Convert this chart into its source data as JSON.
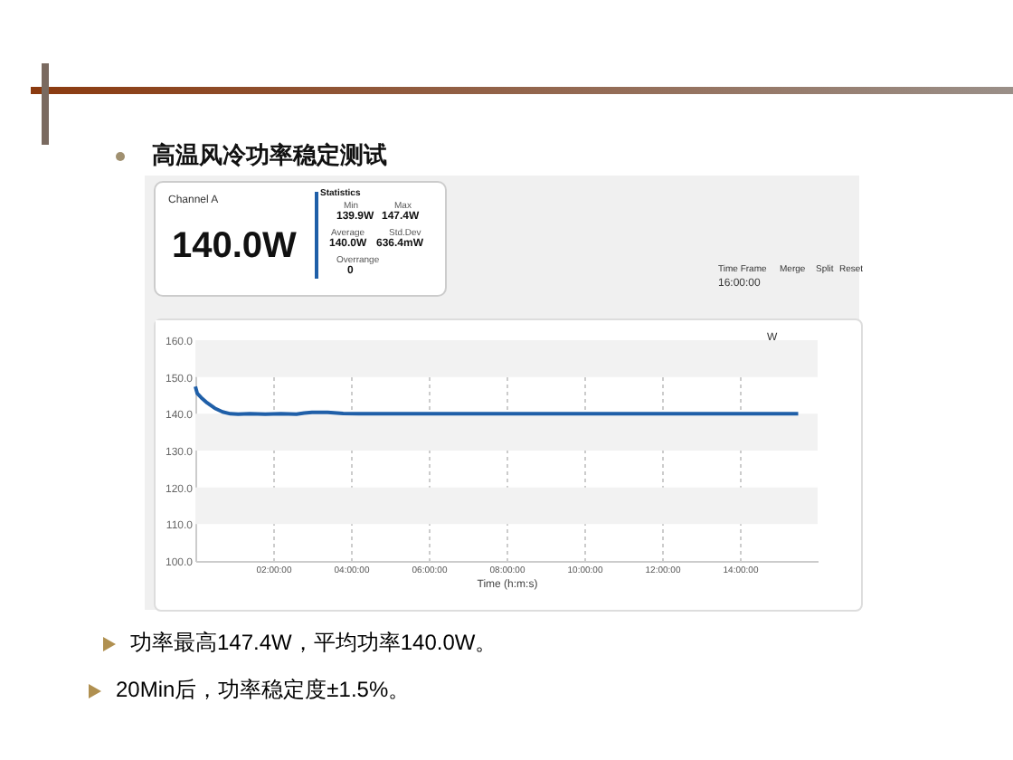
{
  "chart_data": {
    "type": "line",
    "subtitle": "高温风冷功率稳定测试",
    "xlabel": "Time (h:m:s)",
    "annotations": [
      "Channel A",
      "140.0W",
      "Statistics",
      "Min",
      "139.9W",
      "Max",
      "147.4W",
      "Average",
      "140.0W",
      "Std.Dev",
      "636.4mW",
      "Overrange",
      "0",
      "Time Frame",
      "16:00:00",
      "Merge",
      "Split",
      "Reset",
      "W",
      "功率最高147.4W，平均功率140.0W。",
      "20Min后，功率稳定度±1.5%。"
    ],
    "series": [
      {
        "color": "#1f5fa8",
        "x": [
          0,
          0.05,
          0.15,
          0.3,
          0.5,
          0.7,
          0.9,
          1.1,
          1.4,
          1.8,
          2.2,
          2.6,
          2.8,
          3.0,
          3.4,
          3.8,
          4.2,
          6,
          8,
          10,
          12,
          14,
          15.5
        ],
        "values": [
          147.4,
          145.5,
          144.4,
          143.0,
          141.5,
          140.5,
          140.0,
          139.9,
          140.0,
          139.9,
          140.0,
          139.9,
          140.2,
          140.4,
          140.4,
          140.1,
          140.0,
          140.0,
          140.0,
          140.0,
          140.0,
          140.0,
          140.0
        ]
      }
    ],
    "xlim": [
      0,
      16
    ],
    "ylim": [
      100,
      160
    ],
    "xticks": [
      {
        "value": 2,
        "label": "02:00:00"
      },
      {
        "value": 4,
        "label": "04:00:00"
      },
      {
        "value": 6,
        "label": "06:00:00"
      },
      {
        "value": 8,
        "label": "08:00:00"
      },
      {
        "value": 10,
        "label": "10:00:00"
      },
      {
        "value": 12,
        "label": "12:00:00"
      },
      {
        "value": 14,
        "label": "14:00:00"
      }
    ],
    "yticks": [
      {
        "value": 100,
        "label": "100.0"
      },
      {
        "value": 110,
        "label": "110.0"
      },
      {
        "value": 120,
        "label": "120.0"
      },
      {
        "value": 130,
        "label": "130.0"
      },
      {
        "value": 140,
        "label": "140.0"
      },
      {
        "value": 150,
        "label": "150.0"
      },
      {
        "value": 160,
        "label": "160.0"
      }
    ],
    "bands": [
      {
        "axis": "y",
        "from": 150,
        "to": 160,
        "color": "#f2f2f2"
      },
      {
        "axis": "y",
        "from": 130,
        "to": 140,
        "color": "#f2f2f2"
      },
      {
        "axis": "y",
        "from": 110,
        "to": 120,
        "color": "#f2f2f2"
      }
    ],
    "grid": "x",
    "marker": "none",
    "line_style": "solid"
  }
}
